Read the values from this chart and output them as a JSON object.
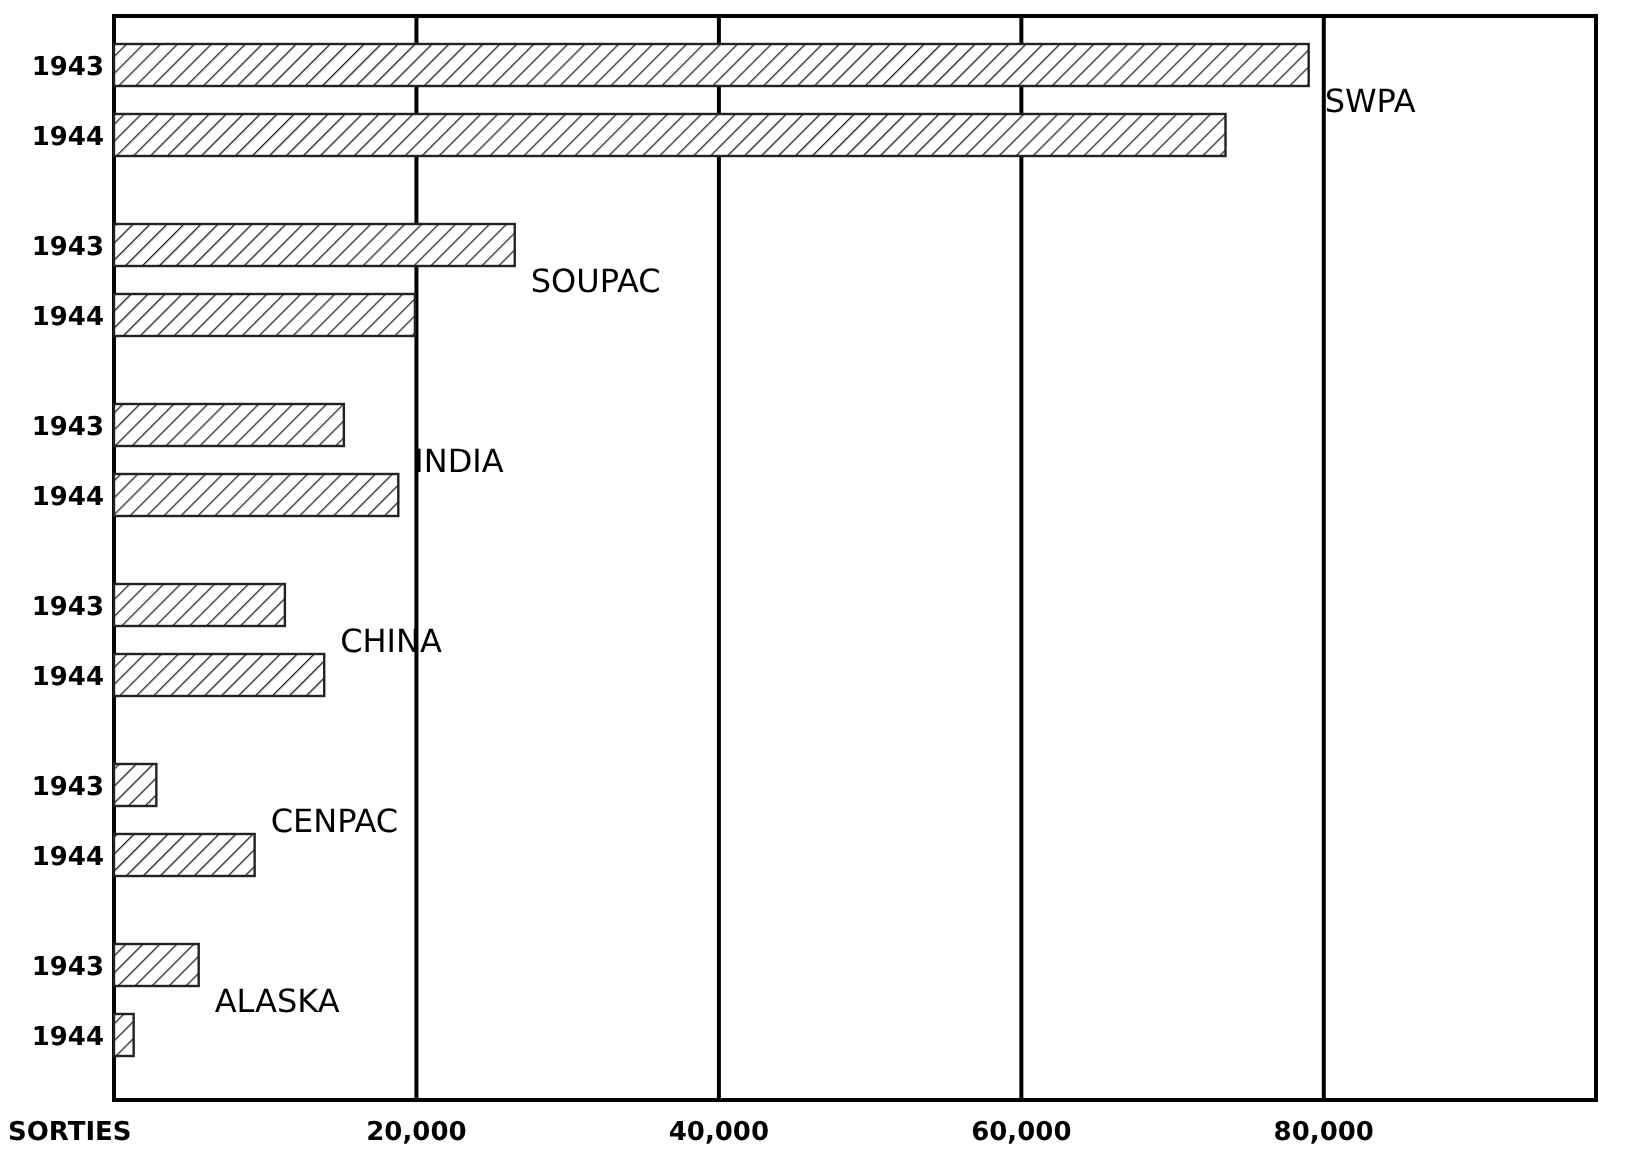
{
  "chart_data": {
    "type": "bar",
    "orientation": "horizontal",
    "xlabel": "SORTIES",
    "categories": [
      "1943",
      "1944",
      "1943",
      "1944",
      "1943",
      "1944",
      "1943",
      "1944",
      "1943",
      "1944",
      "1943",
      "1944"
    ],
    "values": [
      79000,
      73500,
      26500,
      19900,
      15200,
      18800,
      11300,
      13900,
      2800,
      9300,
      5600,
      1300
    ],
    "color": "#222222",
    "xlim": [
      0,
      98000
    ],
    "xticks": [
      {
        "value": 0,
        "label": null
      },
      {
        "value": 20000,
        "label": "20,000"
      },
      {
        "value": 40000,
        "label": "40,000"
      },
      {
        "value": 60000,
        "label": "60,000"
      },
      {
        "value": 80000,
        "label": "80,000"
      }
    ],
    "grid": "x",
    "annotations": [
      "SWPA",
      "SOUPAC",
      "INDIA",
      "CHINA",
      "CENPAC",
      "ALASKA"
    ]
  }
}
